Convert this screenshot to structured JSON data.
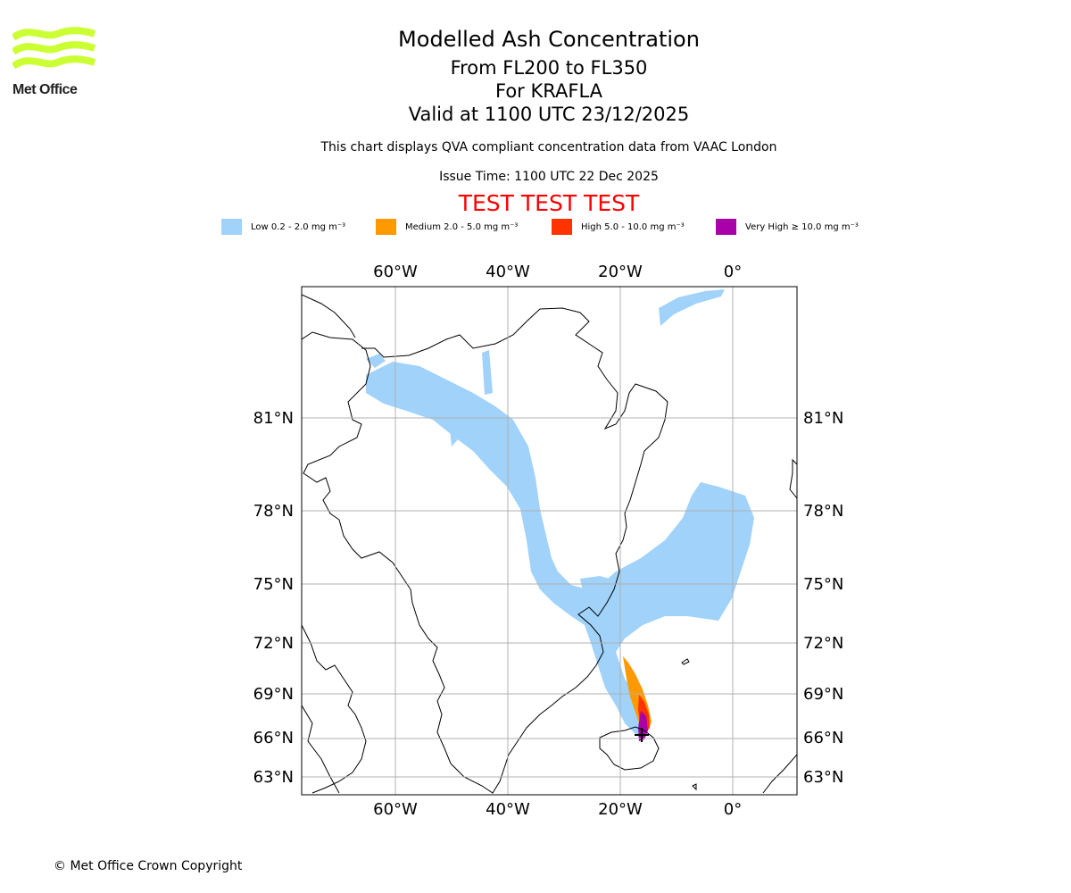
{
  "logo": {
    "text": "Met Office",
    "icon": "met-office-wave-logo",
    "color": "#ccff33"
  },
  "title": "Modelled Ash Concentration",
  "subtitle_levels": "From FL200 to FL350",
  "subtitle_volcano": "For KRAFLA",
  "subtitle_valid": "Valid at 1100 UTC 23/12/2025",
  "notice": "This chart displays QVA compliant concentration data from VAAC London",
  "issue_time": "Issue Time: 1100 UTC 22 Dec 2025",
  "test_banner": "TEST TEST TEST",
  "legend": [
    {
      "label": "Low 0.2 - 2.0 mg m⁻³",
      "color": "#a0d2fa"
    },
    {
      "label": "Medium 2.0 - 5.0 mg m⁻³",
      "color": "#ff9900"
    },
    {
      "label": "High 5.0 - 10.0 mg m⁻³",
      "color": "#ff3300"
    },
    {
      "label": "Very High  ≥  10.0 mg m⁻³",
      "color": "#aa00aa"
    }
  ],
  "map": {
    "lon_ticks": [
      "60°W",
      "40°W",
      "20°W",
      "0°"
    ],
    "lat_ticks": [
      "81°N",
      "78°N",
      "75°N",
      "72°N",
      "69°N",
      "66°N",
      "63°N"
    ],
    "grid": true,
    "source_marker": "volcano-cross-icon"
  },
  "copyright": "© Met Office Crown Copyright"
}
